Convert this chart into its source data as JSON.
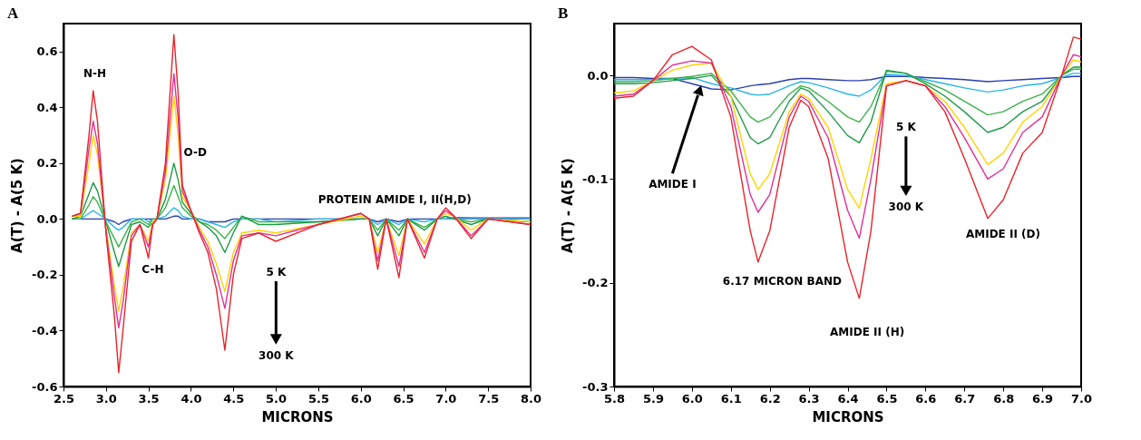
{
  "chart_data": [
    {
      "type": "line",
      "title": "A",
      "xlabel": "MICRONS",
      "ylabel": "A(T) - A(5 K)",
      "xlim": [
        2.5,
        8.0
      ],
      "ylim": [
        -0.6,
        0.7
      ],
      "xticks": [
        2.5,
        {
          "value": 3,
          "label": "3.0"
        },
        3.5,
        {
          "value": 4,
          "label": "4.0"
        },
        4.5,
        {
          "value": 5,
          "label": "5.0"
        },
        5.5,
        {
          "value": 6,
          "label": "6.0"
        },
        6.5,
        {
          "value": 7,
          "label": "7.0"
        },
        7.5,
        {
          "value": 8,
          "label": "8.0"
        }
      ],
      "yticks": [
        -0.6,
        -0.4,
        -0.2,
        {
          "value": 0,
          "label": "0.0"
        },
        0.2,
        0.4,
        0.6
      ],
      "grid": false,
      "legend": false,
      "line_style": "solid",
      "x": [
        2.6,
        2.7,
        2.8,
        2.85,
        2.9,
        3.0,
        3.1,
        3.15,
        3.2,
        3.3,
        3.4,
        3.45,
        3.5,
        3.55,
        3.6,
        3.7,
        3.8,
        3.85,
        3.9,
        4.0,
        4.1,
        4.2,
        4.3,
        4.4,
        4.5,
        4.6,
        4.8,
        5.0,
        5.5,
        6.0,
        6.1,
        6.2,
        6.3,
        6.45,
        6.55,
        6.75,
        6.9,
        7.0,
        7.1,
        7.3,
        7.5,
        8.0
      ],
      "series": [
        {
          "color": "#2b3fb0",
          "values": [
            0,
            0,
            0,
            0,
            0,
            0,
            -0.01,
            -0.02,
            -0.01,
            0,
            0,
            0,
            0,
            0,
            0,
            0,
            0.01,
            0.01,
            0,
            0,
            0,
            -0.01,
            -0.01,
            -0.01,
            0,
            0,
            0,
            0,
            0,
            0,
            0,
            -0.01,
            0,
            -0.01,
            0,
            0,
            0,
            0,
            0.005,
            0.004,
            0.004,
            0.004
          ]
        },
        {
          "color": "#29b6e8",
          "values": [
            0,
            0,
            0.02,
            0.03,
            0.02,
            0,
            -0.03,
            -0.04,
            -0.03,
            0,
            0,
            0,
            -0.01,
            0,
            0,
            0.01,
            0.04,
            0.03,
            0.01,
            0,
            0,
            -0.01,
            -0.02,
            -0.03,
            -0.01,
            0,
            0,
            -0.01,
            0,
            0,
            0,
            -0.02,
            0,
            -0.02,
            0,
            -0.01,
            0,
            0,
            0,
            0,
            0,
            0
          ]
        },
        {
          "color": "#3cb34a",
          "values": [
            0,
            0,
            0.05,
            0.08,
            0.06,
            -0.01,
            -0.07,
            -0.1,
            -0.07,
            -0.01,
            0,
            -0.01,
            -0.02,
            0,
            0,
            0.04,
            0.12,
            0.08,
            0.04,
            0.01,
            -0.01,
            -0.02,
            -0.04,
            -0.07,
            -0.03,
            0.01,
            -0.01,
            -0.01,
            -0.01,
            0,
            0,
            -0.04,
            0,
            -0.04,
            0,
            -0.03,
            0,
            0.01,
            0,
            -0.01,
            0,
            -0.01
          ]
        },
        {
          "color": "#1e9a48",
          "values": [
            0,
            0.01,
            0.09,
            0.13,
            0.1,
            -0.01,
            -0.12,
            -0.17,
            -0.12,
            -0.02,
            -0.01,
            -0.02,
            -0.03,
            -0.01,
            0,
            0.07,
            0.2,
            0.14,
            0.06,
            0.02,
            -0.01,
            -0.03,
            -0.06,
            -0.12,
            -0.05,
            0.01,
            -0.02,
            -0.02,
            -0.01,
            0,
            0,
            -0.06,
            0,
            -0.06,
            0,
            -0.04,
            0,
            0.01,
            0,
            -0.02,
            0,
            -0.01
          ]
        },
        {
          "color": "#ffd400",
          "values": [
            0.01,
            0.01,
            0.2,
            0.3,
            0.23,
            -0.03,
            -0.24,
            -0.33,
            -0.25,
            -0.05,
            -0.02,
            -0.05,
            -0.08,
            -0.01,
            0,
            0.14,
            0.44,
            0.3,
            0.08,
            0.03,
            -0.03,
            -0.08,
            -0.16,
            -0.26,
            -0.12,
            -0.05,
            -0.04,
            -0.05,
            -0.02,
            0.01,
            0,
            -0.12,
            0,
            -0.13,
            0,
            -0.09,
            0,
            0.02,
            0.01,
            -0.04,
            0,
            -0.01
          ]
        },
        {
          "color": "#e0309a",
          "values": [
            0.01,
            0.02,
            0.25,
            0.35,
            0.27,
            -0.04,
            -0.28,
            -0.39,
            -0.3,
            -0.06,
            -0.02,
            -0.06,
            -0.1,
            -0.02,
            0,
            0.17,
            0.52,
            0.36,
            0.1,
            0.03,
            -0.04,
            -0.1,
            -0.2,
            -0.32,
            -0.15,
            -0.06,
            -0.05,
            -0.06,
            -0.02,
            0.02,
            0,
            -0.15,
            0,
            -0.17,
            0,
            -0.12,
            0,
            0.03,
            0.01,
            -0.06,
            0,
            -0.02
          ]
        },
        {
          "color": "#e8242c",
          "values": [
            0.01,
            0.02,
            0.3,
            0.46,
            0.35,
            -0.05,
            -0.35,
            -0.55,
            -0.4,
            -0.08,
            -0.02,
            -0.08,
            -0.14,
            -0.02,
            0,
            0.2,
            0.66,
            0.45,
            0.12,
            0.03,
            -0.05,
            -0.12,
            -0.25,
            -0.47,
            -0.2,
            -0.07,
            -0.05,
            -0.08,
            -0.02,
            0.02,
            0,
            -0.18,
            0,
            -0.21,
            0,
            -0.14,
            0,
            0.04,
            0.01,
            -0.07,
            0,
            -0.02
          ]
        }
      ],
      "annotations": [
        "N-H",
        "O-D",
        "C-H",
        "PROTEIN AMIDE I, II(H,D)",
        "5 K",
        "300 K"
      ]
    },
    {
      "type": "line",
      "title": "B",
      "xlabel": "MICRONS",
      "ylabel": "A(T) - A(5 K)",
      "xlim": [
        5.8,
        7.0
      ],
      "ylim": [
        -0.3,
        0.05
      ],
      "xticks": [
        5.8,
        5.9,
        {
          "value": 6,
          "label": "6.0"
        },
        6.1,
        6.2,
        6.3,
        6.4,
        6.5,
        6.6,
        6.7,
        6.8,
        6.9,
        {
          "value": 7,
          "label": "7.0"
        }
      ],
      "yticks": [
        -0.3,
        -0.2,
        -0.1,
        {
          "value": 0,
          "label": "0.0"
        }
      ],
      "grid": false,
      "legend": false,
      "line_style": "solid",
      "x": [
        5.8,
        5.85,
        5.9,
        5.95,
        6.0,
        6.05,
        6.1,
        6.15,
        6.17,
        6.2,
        6.25,
        6.28,
        6.3,
        6.35,
        6.4,
        6.43,
        6.46,
        6.5,
        6.55,
        6.6,
        6.65,
        6.7,
        6.76,
        6.8,
        6.85,
        6.9,
        6.95,
        6.98,
        7.0
      ],
      "series": [
        {
          "color": "#2b3fb0",
          "values": [
            -0.002,
            -0.002,
            -0.003,
            -0.003,
            -0.008,
            -0.013,
            -0.014,
            -0.01,
            -0.009,
            -0.008,
            -0.004,
            -0.003,
            -0.003,
            -0.004,
            -0.005,
            -0.005,
            -0.004,
            -0.001,
            -0.001,
            -0.002,
            -0.003,
            -0.004,
            -0.006,
            -0.005,
            -0.004,
            -0.003,
            -0.002,
            -0.001,
            -0.001
          ]
        },
        {
          "color": "#29b6e8",
          "values": [
            -0.004,
            -0.004,
            -0.004,
            -0.003,
            -0.002,
            -0.008,
            -0.012,
            -0.018,
            -0.019,
            -0.018,
            -0.01,
            -0.006,
            -0.007,
            -0.012,
            -0.018,
            -0.02,
            -0.014,
            0.001,
            0,
            -0.004,
            -0.008,
            -0.012,
            -0.016,
            -0.014,
            -0.01,
            -0.008,
            -0.002,
            0.002,
            0.002
          ]
        },
        {
          "color": "#3cb34a",
          "values": [
            -0.006,
            -0.006,
            -0.005,
            -0.003,
            -0.001,
            0.002,
            -0.015,
            -0.04,
            -0.045,
            -0.04,
            -0.018,
            -0.01,
            -0.012,
            -0.025,
            -0.04,
            -0.045,
            -0.03,
            0.004,
            0.002,
            -0.006,
            -0.014,
            -0.025,
            -0.038,
            -0.035,
            -0.025,
            -0.018,
            0,
            0.006,
            0.006
          ]
        },
        {
          "color": "#1e9a48",
          "values": [
            -0.008,
            -0.008,
            -0.007,
            -0.005,
            -0.003,
            0,
            -0.02,
            -0.06,
            -0.066,
            -0.06,
            -0.025,
            -0.012,
            -0.015,
            -0.035,
            -0.058,
            -0.065,
            -0.045,
            0.005,
            0.002,
            -0.008,
            -0.02,
            -0.035,
            -0.055,
            -0.05,
            -0.035,
            -0.025,
            0,
            0.008,
            0.008
          ]
        },
        {
          "color": "#ffd400",
          "values": [
            -0.017,
            -0.015,
            -0.005,
            0.005,
            0.01,
            0.012,
            -0.02,
            -0.095,
            -0.11,
            -0.095,
            -0.035,
            -0.018,
            -0.022,
            -0.05,
            -0.11,
            -0.128,
            -0.08,
            -0.008,
            -0.005,
            -0.01,
            -0.025,
            -0.05,
            -0.086,
            -0.075,
            -0.045,
            -0.03,
            0,
            0.015,
            0.013
          ]
        },
        {
          "color": "#e0309a",
          "values": [
            -0.02,
            -0.018,
            -0.005,
            0.01,
            0.014,
            0.012,
            -0.03,
            -0.115,
            -0.132,
            -0.115,
            -0.04,
            -0.02,
            -0.025,
            -0.06,
            -0.13,
            -0.157,
            -0.1,
            -0.01,
            -0.005,
            -0.01,
            -0.03,
            -0.06,
            -0.1,
            -0.09,
            -0.055,
            -0.04,
            0,
            0.02,
            0.018
          ]
        },
        {
          "color": "#e8242c",
          "values": [
            -0.022,
            -0.02,
            -0.005,
            0.02,
            0.028,
            0.015,
            -0.04,
            -0.15,
            -0.18,
            -0.15,
            -0.05,
            -0.024,
            -0.03,
            -0.08,
            -0.18,
            -0.215,
            -0.15,
            -0.01,
            -0.005,
            -0.01,
            -0.035,
            -0.08,
            -0.138,
            -0.12,
            -0.075,
            -0.055,
            0,
            0.037,
            0.035
          ]
        }
      ],
      "annotations": [
        "AMIDE I",
        "6.17 MICRON BAND",
        "AMIDE II (H)",
        "AMIDE II (D)",
        "5 K",
        "300 K"
      ]
    }
  ]
}
